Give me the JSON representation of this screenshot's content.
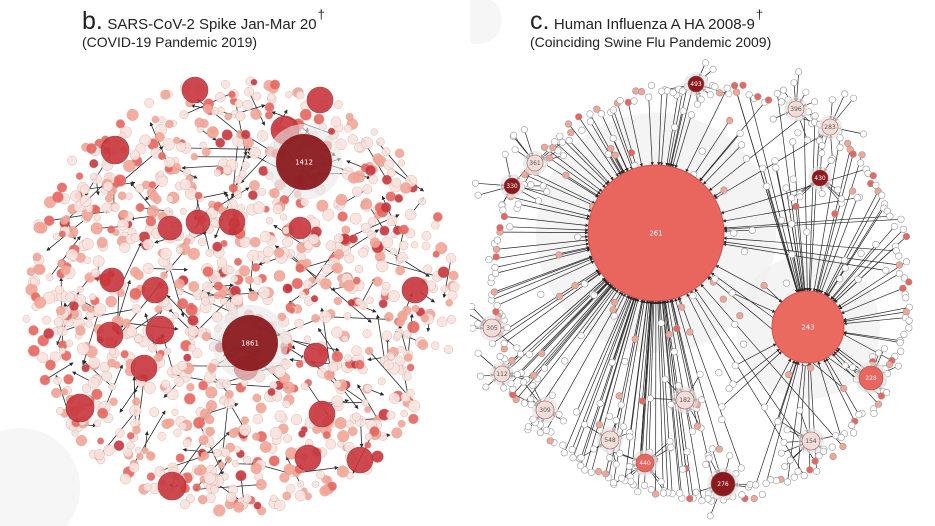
{
  "panels": {
    "b": {
      "letter": "b.",
      "title": "SARS-CoV-2 Spike Jan-Mar 20",
      "dagger": "†",
      "subtitle": "(COVID-19 Pandemic 2019)",
      "hub_labels": [
        "1412",
        "1861"
      ]
    },
    "c": {
      "letter": "c.",
      "title": "Human Influenza A HA 2008-9",
      "dagger": "†",
      "subtitle": "(Coinciding Swine Flu Pandemic 2009)",
      "hub_labels": [
        "261",
        "243",
        "493",
        "396",
        "283",
        "430",
        "361",
        "330",
        "305",
        "112",
        "309",
        "182",
        "548",
        "440",
        "276",
        "154",
        "228"
      ]
    }
  },
  "colors": {
    "dark_red": "#8b1a1f",
    "red": "#c8363c",
    "salmon": "#e8665e",
    "light_salmon": "#f4a596",
    "pale": "#fbe3de",
    "edge": "#2a2a2a"
  }
}
